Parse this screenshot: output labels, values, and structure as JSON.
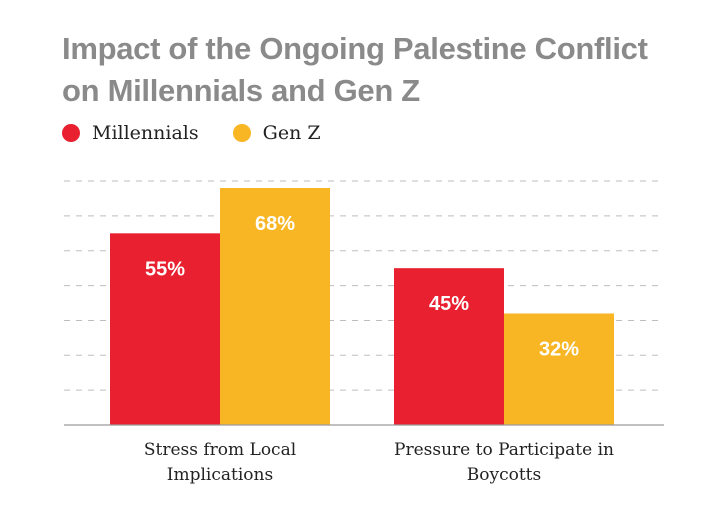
{
  "title_line1": "Impact of the Ongoing Palestine Conflict",
  "title_line2": "on Millennials and Gen Z",
  "chart_data": {
    "type": "bar",
    "title": "Impact of the Ongoing Palestine Conflict on Millennials and Gen Z",
    "categories_line1": [
      "Stress from Local",
      "Pressure to Participate in"
    ],
    "categories_line2": [
      "Implications",
      "Boycotts"
    ],
    "categories": [
      "Stress from Local Implications",
      "Pressure to Participate in Boycotts"
    ],
    "series": [
      {
        "name": "Millennials",
        "color": "#e8202f",
        "values": [
          55,
          45
        ],
        "labels": [
          "55%",
          "45%"
        ]
      },
      {
        "name": "Gen Z",
        "color": "#f9b624",
        "values": [
          68,
          32
        ],
        "labels": [
          "68%",
          "32%"
        ]
      }
    ],
    "ylim": [
      0,
      75
    ],
    "grid": true,
    "legend_position": "top-left",
    "xlabel": "",
    "ylabel": ""
  }
}
